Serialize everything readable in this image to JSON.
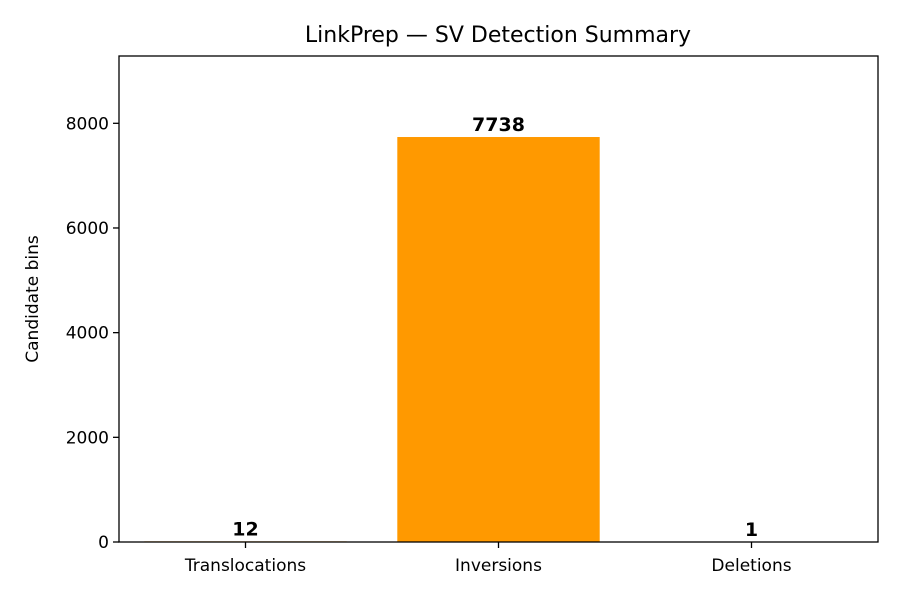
{
  "chart_data": {
    "type": "bar",
    "title": "LinkPrep — SV Detection Summary",
    "xlabel": "",
    "ylabel": "Candidate bins",
    "categories": [
      "Translocations",
      "Inversions",
      "Deletions"
    ],
    "values": [
      12,
      7738,
      1
    ],
    "data_labels": [
      "12",
      "7738",
      "1"
    ],
    "ylim": [
      0,
      9286
    ],
    "yticks": [
      0,
      2000,
      4000,
      6000,
      8000
    ],
    "ytick_labels": [
      "0",
      "2000",
      "4000",
      "6000",
      "8000"
    ],
    "grid": false,
    "legend": "none",
    "colors": {
      "bar": "#ff9900",
      "axis": "#000000",
      "background": "#ffffff"
    }
  }
}
